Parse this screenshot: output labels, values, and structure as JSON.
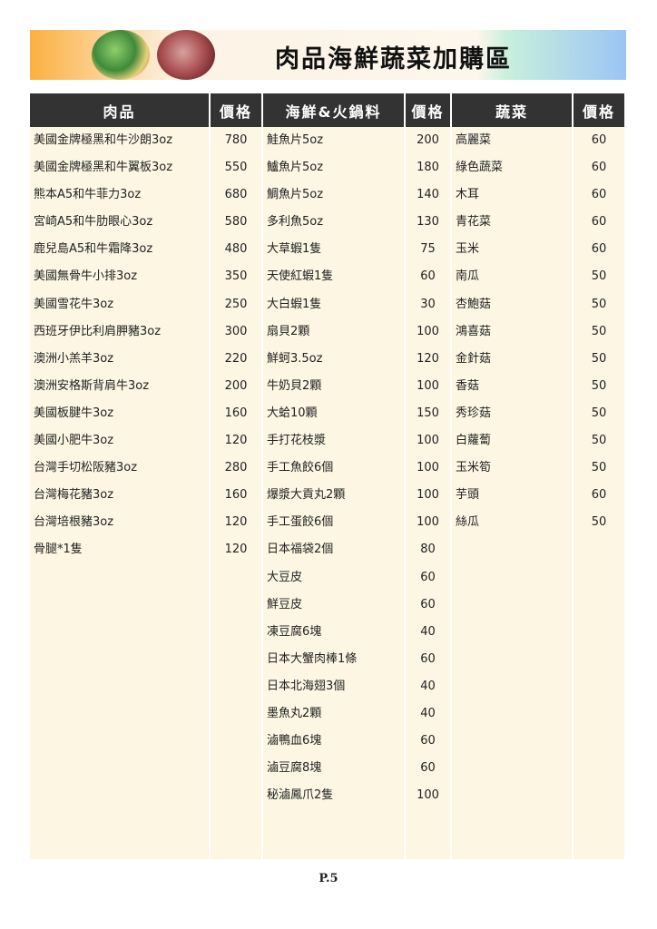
{
  "banner": {
    "title": "肉品海鮮蔬菜加購區",
    "images": [
      "vegetables-photo",
      "beef-photo"
    ]
  },
  "headers": {
    "meat": "肉品",
    "price": "價格",
    "seafood": "海鮮&火鍋料",
    "veg": "蔬菜"
  },
  "meat": [
    {
      "name": "美國金牌極黑和牛沙朗3oz",
      "price": "780"
    },
    {
      "name": "美國金牌極黑和牛翼板3oz",
      "price": "550"
    },
    {
      "name": "熊本A5和牛菲力3oz",
      "price": "680"
    },
    {
      "name": "宮崎A5和牛肋眼心3oz",
      "price": "580"
    },
    {
      "name": "鹿兒島A5和牛霜降3oz",
      "price": "480"
    },
    {
      "name": "美國無骨牛小排3oz",
      "price": "350"
    },
    {
      "name": "美國雪花牛3oz",
      "price": "250"
    },
    {
      "name": "西班牙伊比利肩胛豬3oz",
      "price": "300"
    },
    {
      "name": "澳洲小羔羊3oz",
      "price": "220"
    },
    {
      "name": "澳洲安格斯背肩牛3oz",
      "price": "200"
    },
    {
      "name": "美國板腱牛3oz",
      "price": "160"
    },
    {
      "name": "美國小肥牛3oz",
      "price": "120"
    },
    {
      "name": "台灣手切松阪豬3oz",
      "price": "280"
    },
    {
      "name": "台灣梅花豬3oz",
      "price": "160"
    },
    {
      "name": "台灣培根豬3oz",
      "price": "120"
    },
    {
      "name": "骨腿*1隻",
      "price": "120"
    }
  ],
  "seafood": [
    {
      "name": "鮭魚片5oz",
      "price": "200"
    },
    {
      "name": "鱸魚片5oz",
      "price": "180"
    },
    {
      "name": "鯛魚片5oz",
      "price": "140"
    },
    {
      "name": "多利魚5oz",
      "price": "130"
    },
    {
      "name": "大草蝦1隻",
      "price": "75"
    },
    {
      "name": "天使紅蝦1隻",
      "price": "60"
    },
    {
      "name": "大白蝦1隻",
      "price": "30"
    },
    {
      "name": "扇貝2顆",
      "price": "100"
    },
    {
      "name": "鮮蚵3.5oz",
      "price": "120"
    },
    {
      "name": "牛奶貝2顆",
      "price": "100"
    },
    {
      "name": "大蛤10顆",
      "price": "150"
    },
    {
      "name": "手打花枝漿",
      "price": "100"
    },
    {
      "name": "手工魚餃6個",
      "price": "100"
    },
    {
      "name": "爆漿大貢丸2顆",
      "price": "100"
    },
    {
      "name": "手工蛋餃6個",
      "price": "100"
    },
    {
      "name": "日本福袋2個",
      "price": "80"
    },
    {
      "name": "大豆皮",
      "price": "60"
    },
    {
      "name": "鮮豆皮",
      "price": "60"
    },
    {
      "name": "凍豆腐6塊",
      "price": "40"
    },
    {
      "name": "日本大蟹肉棒1條",
      "price": "60"
    },
    {
      "name": "日本北海翅3個",
      "price": "40"
    },
    {
      "name": "墨魚丸2顆",
      "price": "40"
    },
    {
      "name": "滷鴨血6塊",
      "price": "60"
    },
    {
      "name": "滷豆腐8塊",
      "price": "60"
    },
    {
      "name": "秘滷鳳爪2隻",
      "price": "100"
    }
  ],
  "veg": [
    {
      "name": "高麗菜",
      "price": "60"
    },
    {
      "name": "綠色蔬菜",
      "price": "60"
    },
    {
      "name": "木耳",
      "price": "60"
    },
    {
      "name": "青花菜",
      "price": "60"
    },
    {
      "name": "玉米",
      "price": "60"
    },
    {
      "name": "南瓜",
      "price": "50"
    },
    {
      "name": "杏鮑菇",
      "price": "50"
    },
    {
      "name": "鴻喜菇",
      "price": "50"
    },
    {
      "name": "金針菇",
      "price": "50"
    },
    {
      "name": "香菇",
      "price": "50"
    },
    {
      "name": "秀珍菇",
      "price": "50"
    },
    {
      "name": "白蘿蔔",
      "price": "50"
    },
    {
      "name": "玉米筍",
      "price": "50"
    },
    {
      "name": "芋頭",
      "price": "60"
    },
    {
      "name": "絲瓜",
      "price": "50"
    }
  ],
  "footer": {
    "page": "P.5"
  }
}
